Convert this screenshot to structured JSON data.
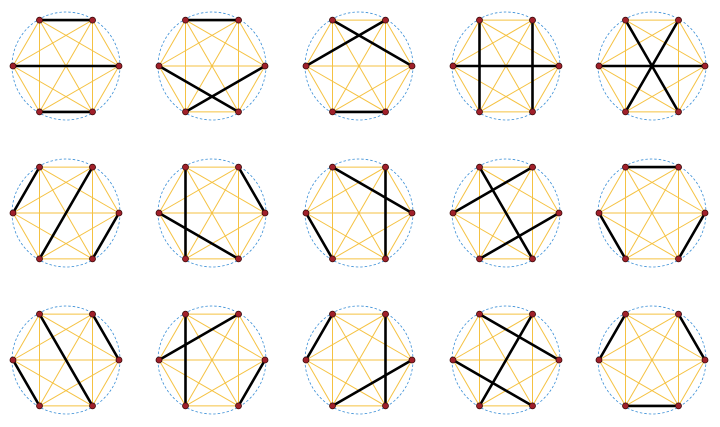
{
  "vertices": 6,
  "matchings": [
    [
      [
        0,
        1
      ],
      [
        5,
        2
      ],
      [
        4,
        3
      ]
    ],
    [
      [
        0,
        1
      ],
      [
        5,
        3
      ],
      [
        2,
        4
      ]
    ],
    [
      [
        0,
        2
      ],
      [
        1,
        5
      ],
      [
        4,
        3
      ]
    ],
    [
      [
        0,
        4
      ],
      [
        1,
        3
      ],
      [
        5,
        2
      ]
    ],
    [
      [
        0,
        3
      ],
      [
        1,
        4
      ],
      [
        5,
        2
      ]
    ],
    [
      [
        0,
        5
      ],
      [
        1,
        4
      ],
      [
        2,
        3
      ]
    ],
    [
      [
        0,
        4
      ],
      [
        5,
        3
      ],
      [
        1,
        2
      ]
    ],
    [
      [
        0,
        2
      ],
      [
        1,
        3
      ],
      [
        5,
        4
      ]
    ],
    [
      [
        0,
        3
      ],
      [
        1,
        5
      ],
      [
        2,
        4
      ]
    ],
    [
      [
        0,
        1
      ],
      [
        5,
        4
      ],
      [
        2,
        3
      ]
    ],
    [
      [
        0,
        3
      ],
      [
        1,
        2
      ],
      [
        5,
        4
      ]
    ],
    [
      [
        0,
        4
      ],
      [
        1,
        5
      ],
      [
        2,
        3
      ]
    ],
    [
      [
        0,
        5
      ],
      [
        1,
        3
      ],
      [
        2,
        4
      ]
    ],
    [
      [
        0,
        2
      ],
      [
        1,
        4
      ],
      [
        5,
        3
      ]
    ],
    [
      [
        0,
        5
      ],
      [
        1,
        2
      ],
      [
        4,
        3
      ]
    ]
  ]
}
